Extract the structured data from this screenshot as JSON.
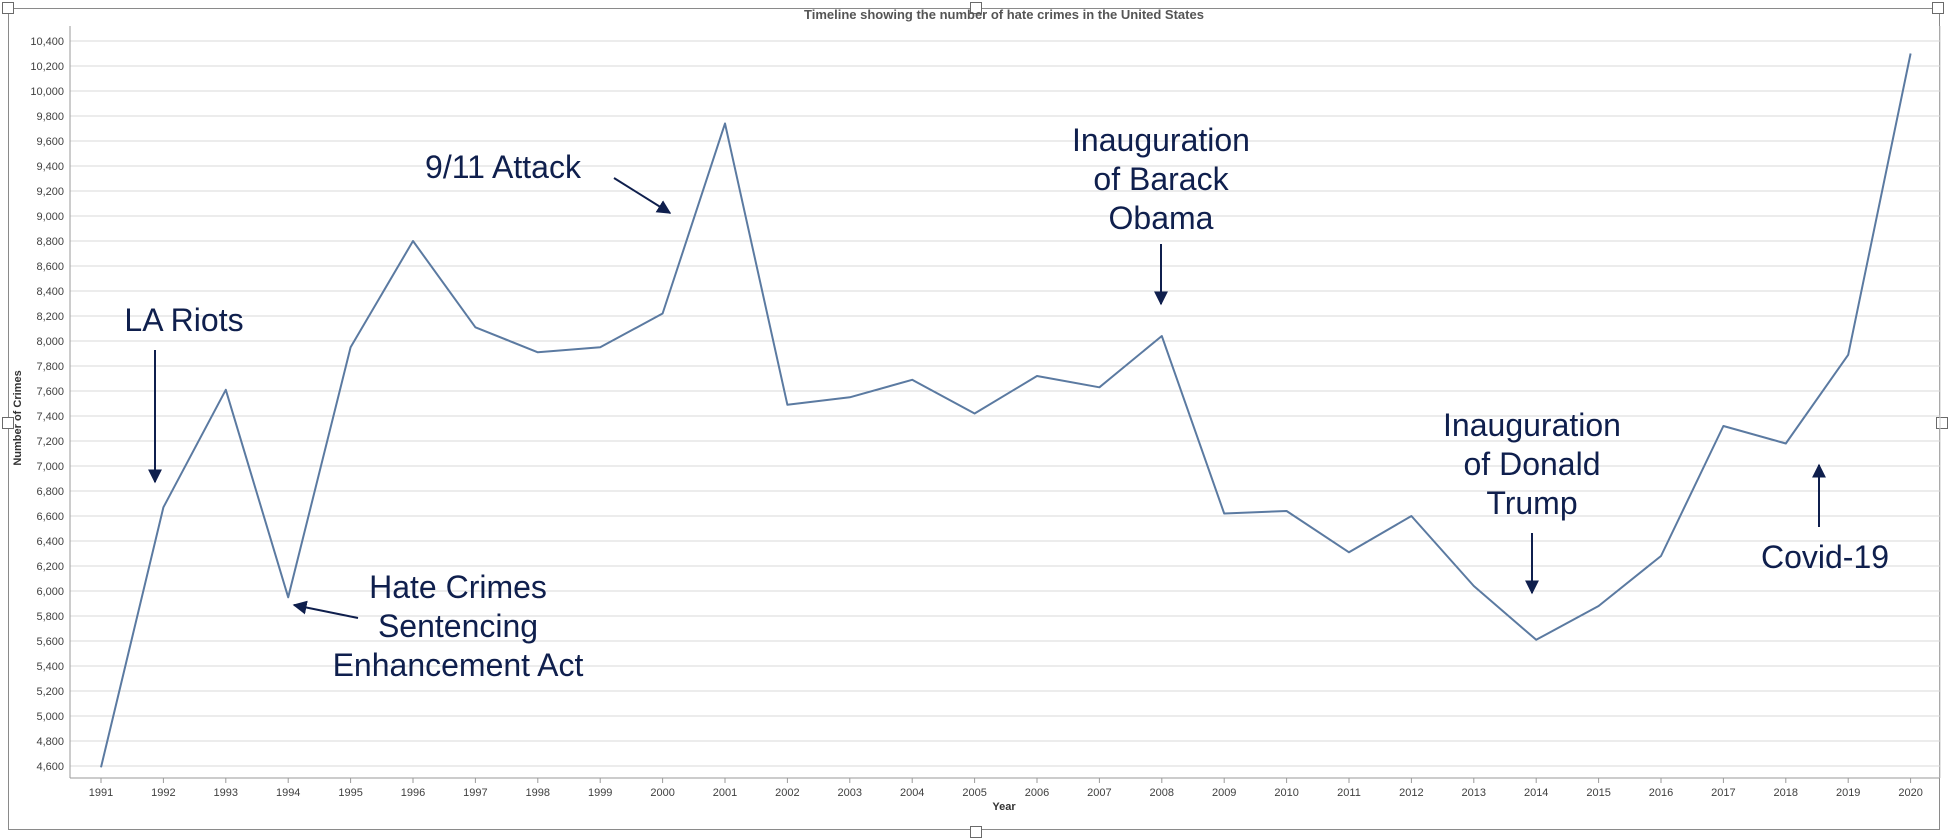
{
  "chart_data": {
    "type": "line",
    "title": "Timeline showing the number of  hate crimes in the United States",
    "xlabel": "Year",
    "ylabel": "Number of Crimes",
    "ylim": [
      4500,
      10500
    ],
    "y_ticks": [
      4600,
      4800,
      5000,
      5200,
      5400,
      5600,
      5800,
      6000,
      6200,
      6400,
      6600,
      6800,
      7000,
      7200,
      7400,
      7600,
      7800,
      8000,
      8200,
      8400,
      8600,
      8800,
      9000,
      9200,
      9400,
      9600,
      9800,
      10000,
      10200,
      10400
    ],
    "grid": true,
    "line_color": "#5b7aa1",
    "annotation_color": "#0f1f4d",
    "categories": [
      "1991",
      "1992",
      "1993",
      "1994",
      "1995",
      "1996",
      "1997",
      "1998",
      "1999",
      "2000",
      "2001",
      "2002",
      "2003",
      "2004",
      "2005",
      "2006",
      "2007",
      "2008",
      "2009",
      "2010",
      "2011",
      "2012",
      "2013",
      "2014",
      "2015",
      "2016",
      "2017",
      "2018",
      "2019",
      "2020"
    ],
    "values": [
      4590,
      6670,
      7610,
      5950,
      7950,
      8800,
      8110,
      7910,
      7950,
      8220,
      9740,
      7490,
      7550,
      7690,
      7420,
      7720,
      7630,
      8040,
      6620,
      6640,
      6310,
      6600,
      6040,
      5610,
      5880,
      6280,
      7320,
      7180,
      7890,
      10300
    ],
    "annotations": [
      {
        "name": "la-riots",
        "lines": [
          "LA Riots"
        ]
      },
      {
        "name": "hate-crimes-act",
        "lines": [
          "Hate Crimes",
          "Sentencing",
          "Enhancement Act"
        ]
      },
      {
        "name": "911-attack",
        "lines": [
          "9/11 Attack"
        ]
      },
      {
        "name": "obama-inauguration",
        "lines": [
          "Inauguration",
          "of Barack",
          "Obama"
        ]
      },
      {
        "name": "trump-inauguration",
        "lines": [
          "Inauguration",
          "of Donald",
          "Trump"
        ]
      },
      {
        "name": "covid-19",
        "lines": [
          "Covid-19"
        ]
      }
    ]
  }
}
